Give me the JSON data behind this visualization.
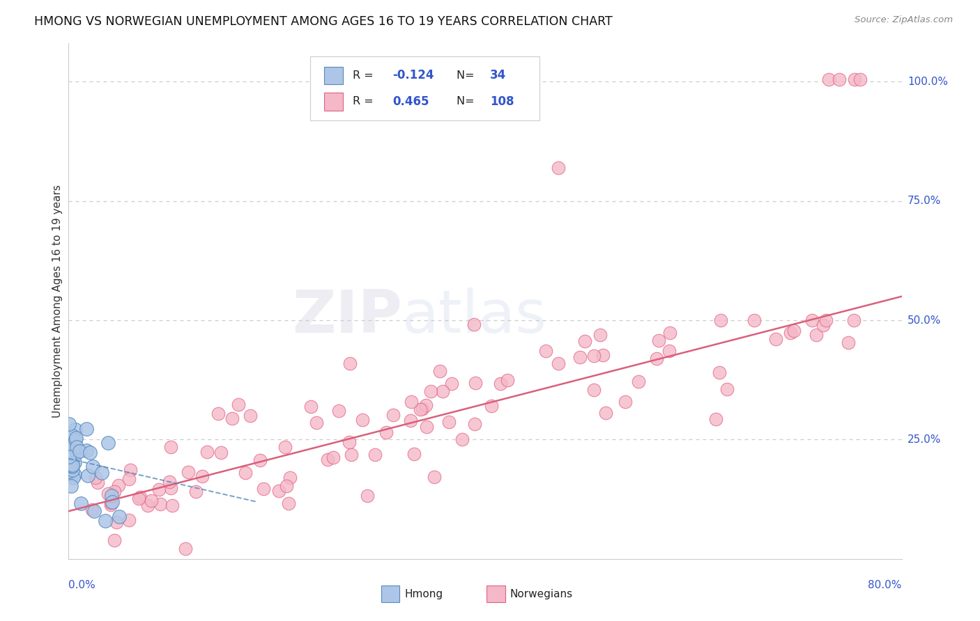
{
  "title": "HMONG VS NORWEGIAN UNEMPLOYMENT AMONG AGES 16 TO 19 YEARS CORRELATION CHART",
  "source": "Source: ZipAtlas.com",
  "ylabel": "Unemployment Among Ages 16 to 19 years",
  "xmin": 0.0,
  "xmax": 0.8,
  "ymin": 0.0,
  "ymax": 1.08,
  "hmong_color": "#adc6e8",
  "hmong_edge_color": "#5588bb",
  "norwegian_color": "#f4b8c8",
  "norwegian_edge_color": "#e06080",
  "hmong_R": -0.124,
  "hmong_N": 34,
  "norwegian_R": 0.465,
  "norwegian_N": 108,
  "legend_label_color": "#3355cc",
  "watermark_zip": "ZIP",
  "watermark_atlas": "atlas",
  "nor_line_x0": 0.0,
  "nor_line_x1": 0.8,
  "nor_line_y0": 0.1,
  "nor_line_y1": 0.55,
  "hmong_line_x0": 0.0,
  "hmong_line_x1": 0.18,
  "hmong_line_y0": 0.21,
  "hmong_line_y1": 0.12
}
